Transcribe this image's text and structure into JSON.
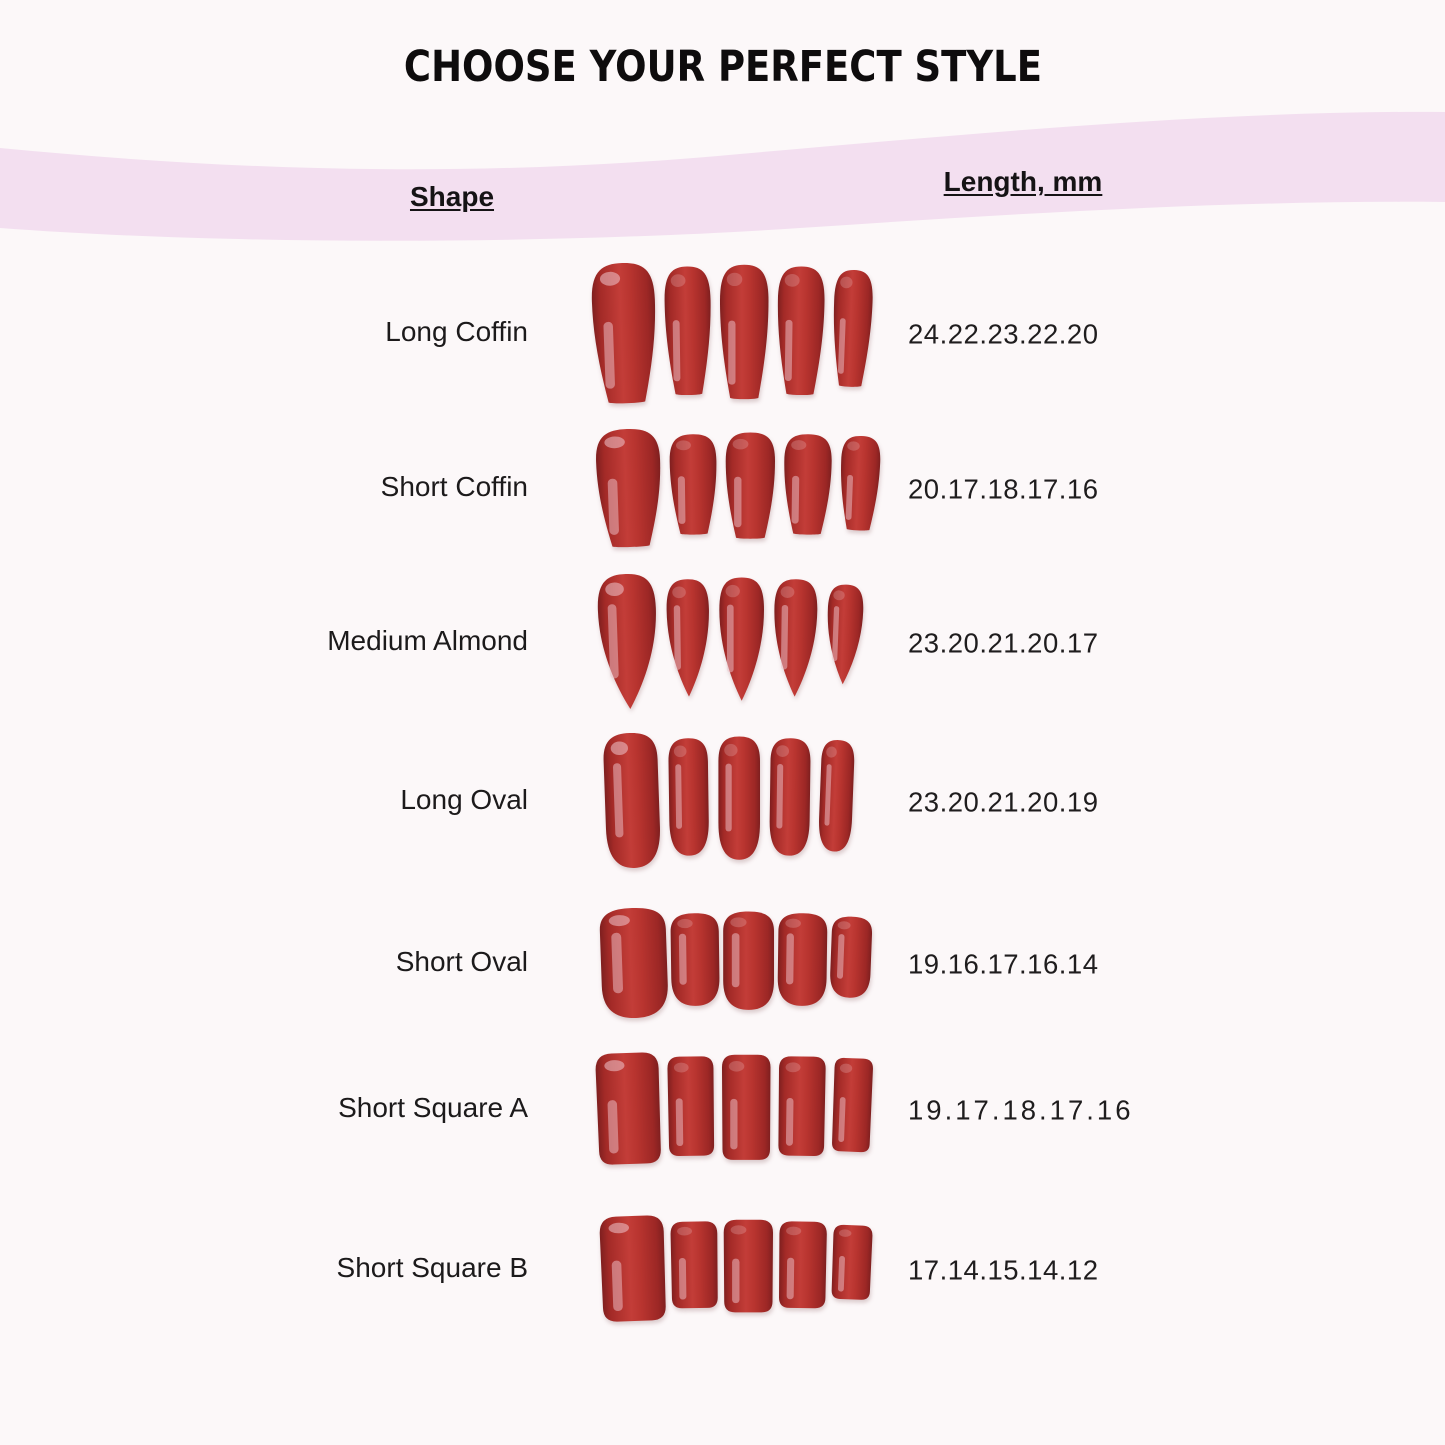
{
  "title": "CHOOSE YOUR PERFECT STYLE",
  "columns": {
    "shape": "Shape",
    "length": "Length, mm"
  },
  "rows": [
    {
      "shape_label": "Long Coffin",
      "lengths_mm": "24.22.23.22.20",
      "nail_style": "coffin",
      "mm": [
        24,
        22,
        23,
        22,
        20
      ]
    },
    {
      "shape_label": "Short Coffin",
      "lengths_mm": "20.17.18.17.16",
      "nail_style": "coffin",
      "mm": [
        20,
        17,
        18,
        17,
        16
      ]
    },
    {
      "shape_label": "Medium Almond",
      "lengths_mm": "23.20.21.20.17",
      "nail_style": "almond",
      "mm": [
        23,
        20,
        21,
        20,
        17
      ]
    },
    {
      "shape_label": "Long Oval",
      "lengths_mm": "23.20.21.20.19",
      "nail_style": "oval",
      "mm": [
        23,
        20,
        21,
        20,
        19
      ]
    },
    {
      "shape_label": "Short Oval",
      "lengths_mm": "19.16.17.16.14",
      "nail_style": "oval",
      "mm": [
        19,
        16,
        17,
        16,
        14
      ]
    },
    {
      "shape_label": "Short Square A",
      "lengths_mm": "19.17.18.17.16",
      "nail_style": "square",
      "mm": [
        19,
        17,
        18,
        17,
        16
      ]
    },
    {
      "shape_label": "Short Square B",
      "lengths_mm": "17.14.15.14.12",
      "nail_style": "square",
      "mm": [
        17,
        14,
        15,
        14,
        12
      ]
    }
  ],
  "colors": {
    "background": "#fcf8f9",
    "banner_pink": "#f3dff0",
    "nail_red": "#b8342f",
    "nail_red_dark": "#7e1f1f",
    "nail_red_bright": "#c33d38",
    "nail_highlight": "#efc6cd",
    "text": "#1c1a1b"
  }
}
